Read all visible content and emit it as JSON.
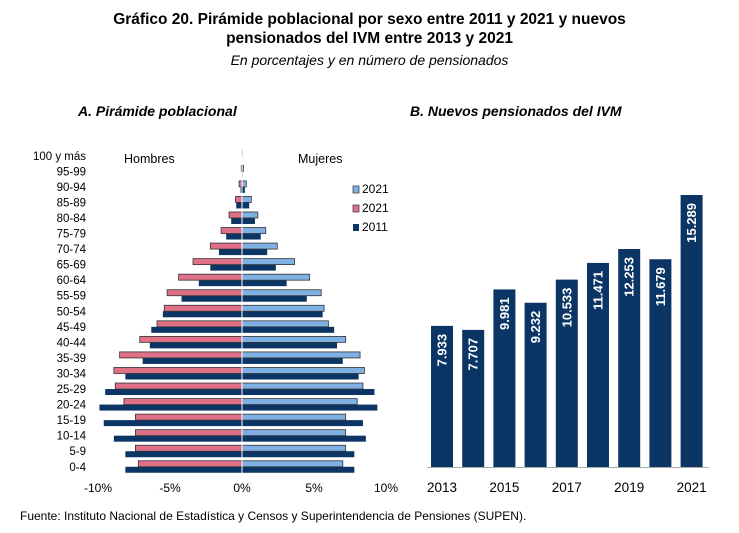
{
  "header": {
    "title_line1": "Gráfico 20. Pirámide poblacional por sexo entre 2011 y 2021 y nuevos",
    "title_line2": "pensionados del IVM entre 2013 y 2021",
    "subtitle": "En porcentajes y en número de pensionados"
  },
  "panels": {
    "a_title": "A.   Pirámide poblacional",
    "b_title": "B.  Nuevos pensionados del IVM"
  },
  "footer": {
    "source": "Fuente: Instituto Nacional de Estadística y Censos y Superintendencia de Pensiones (SUPEN)."
  },
  "colors": {
    "women_2021": "#7fb0e4",
    "men_2021": "#e07088",
    "year_2011": "#0b3564",
    "ivm_bars": "#0b3564"
  },
  "chart_data": [
    {
      "type": "bar",
      "orientation": "horizontal-pyramid",
      "title": "Pirámide poblacional",
      "xlabel": "",
      "ylabel": "",
      "xlim": [
        -10,
        10
      ],
      "xticks": [
        "-10%",
        "-5%",
        "0%",
        "5%",
        "10%"
      ],
      "side_labels": {
        "left": "Hombres",
        "right": "Mujeres"
      },
      "legend": {
        "position": "right",
        "entries": [
          "2021",
          "2021",
          "2011"
        ]
      },
      "categories": [
        "0-4",
        "5-9",
        "10-14",
        "15-19",
        "20-24",
        "25-29",
        "30-34",
        "35-39",
        "40-44",
        "45-49",
        "50-54",
        "55-59",
        "60-64",
        "65-69",
        "70-74",
        "75-79",
        "80-84",
        "85-89",
        "90-94",
        "95-99",
        "100 y más"
      ],
      "series": [
        {
          "name": "Mujeres 2021",
          "legend_label": "2021",
          "values": [
            7.0,
            7.2,
            7.2,
            7.2,
            8.0,
            8.4,
            8.5,
            8.2,
            7.2,
            6.0,
            5.7,
            5.5,
            4.7,
            3.65,
            2.45,
            1.65,
            1.1,
            0.65,
            0.3,
            0.1,
            0.02
          ]
        },
        {
          "name": "Hombres 2021",
          "legend_label": "2021",
          "values": [
            -7.2,
            -7.4,
            -7.4,
            -7.4,
            -8.2,
            -8.8,
            -8.9,
            -8.5,
            -7.1,
            -5.9,
            -5.4,
            -5.2,
            -4.4,
            -3.4,
            -2.2,
            -1.45,
            -0.9,
            -0.45,
            -0.2,
            -0.05,
            -0.01
          ]
        },
        {
          "name": "Mujeres 2011",
          "legend_label": "2011",
          "values": [
            7.8,
            7.8,
            8.6,
            8.4,
            9.4,
            9.2,
            8.1,
            7.0,
            6.6,
            6.4,
            5.6,
            4.5,
            3.1,
            2.35,
            1.75,
            1.3,
            0.9,
            0.5,
            0.2,
            0.05,
            0.01
          ]
        },
        {
          "name": "Hombres 2011",
          "legend_label": "2011",
          "values": [
            -8.1,
            -8.1,
            -8.9,
            -9.6,
            -9.9,
            -9.5,
            -8.1,
            -6.9,
            -6.4,
            -6.3,
            -5.5,
            -4.2,
            -3.0,
            -2.2,
            -1.6,
            -1.1,
            -0.75,
            -0.4,
            -0.1,
            -0.03,
            -0.01
          ]
        }
      ]
    },
    {
      "type": "bar",
      "title": "Nuevos pensionados del IVM",
      "xlabel": "",
      "ylabel": "",
      "categories": [
        "2013",
        "2014",
        "2015",
        "2016",
        "2017",
        "2018",
        "2019",
        "2020",
        "2021"
      ],
      "xtick_labels": [
        "2013",
        "",
        "2015",
        "",
        "2017",
        "",
        "2019",
        "",
        "2021"
      ],
      "values": [
        7933,
        7707,
        9981,
        9232,
        10533,
        11471,
        12253,
        11679,
        15289
      ],
      "data_labels": [
        "7.933",
        "7.707",
        "9.981",
        "9.232",
        "10.533",
        "11.471",
        "12.253",
        "11.679",
        "15.289"
      ],
      "ylim": [
        0,
        15289
      ]
    }
  ]
}
